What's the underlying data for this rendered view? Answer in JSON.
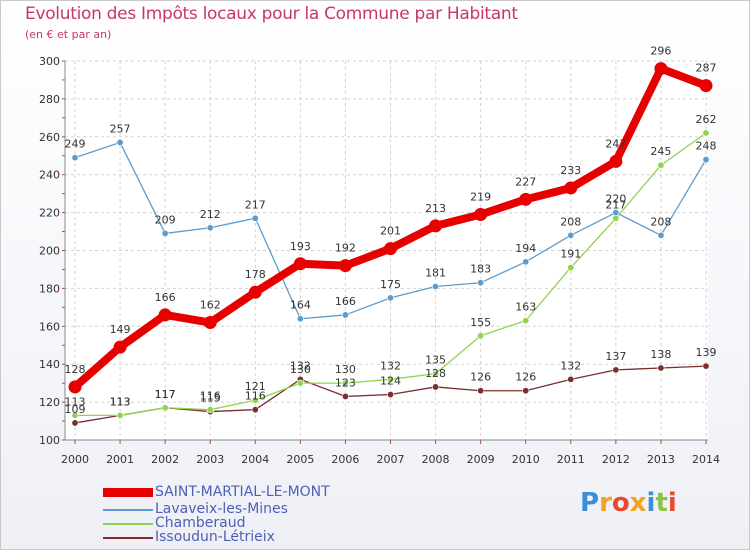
{
  "header": {
    "title": "Evolution des Impôts locaux pour la Commune par Habitant",
    "subtitle": "(en € et par an)"
  },
  "logo": {
    "text": "Proxiti",
    "letters": [
      {
        "ch": "P",
        "color": "#3b8fd4"
      },
      {
        "ch": "r",
        "color": "#f2a31c"
      },
      {
        "ch": "o",
        "color": "#e84b2c"
      },
      {
        "ch": "x",
        "color": "#f2a31c"
      },
      {
        "ch": "i",
        "color": "#3b8fd4"
      },
      {
        "ch": "t",
        "color": "#8bc34a"
      },
      {
        "ch": "i",
        "color": "#e84b2c"
      }
    ]
  },
  "chart_data": {
    "type": "line",
    "title": "Evolution des Impôts locaux pour la Commune par Habitant",
    "subtitle": "(en € et par an)",
    "xlabel": "",
    "ylabel": "",
    "x": [
      "2000",
      "2001",
      "2002",
      "2003",
      "2004",
      "2005",
      "2006",
      "2007",
      "2008",
      "2009",
      "2010",
      "2011",
      "2012",
      "2013",
      "2014"
    ],
    "ylim": [
      100,
      300
    ],
    "yticks": [
      100,
      120,
      140,
      160,
      180,
      200,
      220,
      240,
      260,
      280,
      300
    ],
    "grid": true,
    "legend_position": "bottom-left",
    "series": [
      {
        "name": "SAINT-MARTIAL-LE-MONT",
        "color": "#e60000",
        "emphasis": true,
        "values": [
          128,
          149,
          166,
          162,
          178,
          193,
          192,
          201,
          213,
          219,
          227,
          233,
          247,
          296,
          287
        ],
        "labels": [
          "128",
          "149",
          "166",
          "162",
          "178",
          "193",
          "192",
          "201",
          "213",
          "219",
          "227",
          "233",
          "247",
          "296",
          "287"
        ]
      },
      {
        "name": "Lavaveix-les-Mines",
        "color": "#5c9ccc",
        "emphasis": false,
        "values": [
          249,
          257,
          209,
          212,
          217,
          164,
          166,
          175,
          181,
          183,
          194,
          208,
          220,
          208,
          248
        ],
        "labels": [
          "249",
          "257",
          "209",
          "212",
          "217",
          "164",
          "166",
          "175",
          "181",
          "183",
          "194",
          "208",
          "220",
          "208",
          "248"
        ]
      },
      {
        "name": "Chamberaud",
        "color": "#8fd44e",
        "emphasis": false,
        "values": [
          113,
          113,
          117,
          116,
          121,
          130,
          130,
          132,
          135,
          155,
          163,
          191,
          217,
          245,
          262
        ],
        "labels": [
          "113",
          "113",
          "117",
          "116",
          "121",
          "130",
          "130",
          "132",
          "135",
          "155",
          "163",
          "191",
          "217",
          "245",
          "262"
        ]
      },
      {
        "name": "Issoudun-Létrieix",
        "color": "#7a2e2e",
        "emphasis": false,
        "values": [
          109,
          113,
          117,
          115,
          116,
          132,
          123,
          124,
          128,
          126,
          126,
          132,
          137,
          138,
          139
        ],
        "labels": [
          "109",
          "113",
          "117",
          "115",
          "116",
          "132",
          "123",
          "124",
          "128",
          "126",
          "126",
          "132",
          "137",
          "138",
          "139"
        ]
      }
    ]
  }
}
